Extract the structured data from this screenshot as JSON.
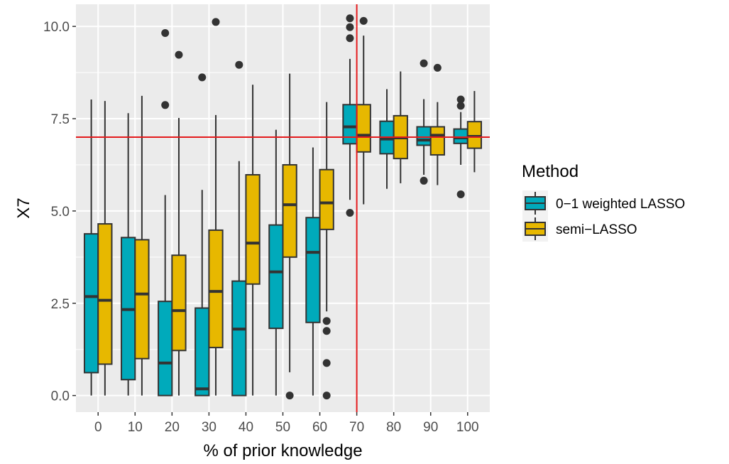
{
  "chart_data": {
    "type": "boxplot",
    "title": "",
    "xlabel": "% of prior knowledge",
    "ylabel": "X7",
    "categories": [
      "0",
      "10",
      "20",
      "30",
      "40",
      "50",
      "60",
      "70",
      "80",
      "90",
      "100"
    ],
    "y_ticks": [
      "0.0",
      "2.5",
      "5.0",
      "7.5",
      "10.0"
    ],
    "ylim": [
      -0.45,
      10.6
    ],
    "grid": true,
    "reference_lines": {
      "horizontal_y": 7.0,
      "vertical_x": "70",
      "color": "#e41a1c"
    },
    "legend": {
      "title": "Method",
      "position": "right",
      "entries": [
        "0−1 weighted LASSO",
        "semi−LASSO"
      ]
    },
    "series": [
      {
        "name": "0−1 weighted LASSO",
        "color": "#00aabb",
        "boxes": [
          {
            "category": "0",
            "lower_whisker": 0.0,
            "q1": 0.62,
            "median": 2.68,
            "q3": 4.38,
            "upper_whisker": 8.02,
            "outliers": []
          },
          {
            "category": "10",
            "lower_whisker": 0.0,
            "q1": 0.43,
            "median": 2.33,
            "q3": 4.28,
            "upper_whisker": 7.65,
            "outliers": []
          },
          {
            "category": "20",
            "lower_whisker": 0.0,
            "q1": 0.0,
            "median": 0.88,
            "q3": 2.55,
            "upper_whisker": 5.43,
            "outliers": [
              7.87,
              9.82
            ]
          },
          {
            "category": "30",
            "lower_whisker": 0.0,
            "q1": 0.0,
            "median": 0.18,
            "q3": 2.37,
            "upper_whisker": 5.57,
            "outliers": [
              8.62
            ]
          },
          {
            "category": "40",
            "lower_whisker": 0.0,
            "q1": 0.0,
            "median": 1.8,
            "q3": 3.1,
            "upper_whisker": 6.35,
            "outliers": [
              8.96
            ]
          },
          {
            "category": "50",
            "lower_whisker": 0.0,
            "q1": 1.82,
            "median": 3.35,
            "q3": 4.62,
            "upper_whisker": 7.2,
            "outliers": []
          },
          {
            "category": "60",
            "lower_whisker": 0.0,
            "q1": 1.98,
            "median": 3.88,
            "q3": 4.82,
            "upper_whisker": 6.72,
            "outliers": []
          },
          {
            "category": "70",
            "lower_whisker": 5.3,
            "q1": 6.82,
            "median": 7.28,
            "q3": 7.88,
            "upper_whisker": 9.12,
            "outliers": [
              4.95,
              9.68,
              9.98,
              10.22
            ]
          },
          {
            "category": "80",
            "lower_whisker": 5.6,
            "q1": 6.55,
            "median": 6.95,
            "q3": 7.43,
            "upper_whisker": 8.3,
            "outliers": []
          },
          {
            "category": "90",
            "lower_whisker": 5.98,
            "q1": 6.78,
            "median": 6.92,
            "q3": 7.28,
            "upper_whisker": 8.03,
            "outliers": [
              5.82,
              9.0
            ]
          },
          {
            "category": "100",
            "lower_whisker": 6.25,
            "q1": 6.83,
            "median": 6.98,
            "q3": 7.22,
            "upper_whisker": 7.68,
            "outliers": [
              5.45,
              7.85,
              8.02
            ]
          }
        ]
      },
      {
        "name": "semi−LASSO",
        "color": "#e7b800",
        "boxes": [
          {
            "category": "0",
            "lower_whisker": 0.0,
            "q1": 0.85,
            "median": 2.58,
            "q3": 4.65,
            "upper_whisker": 7.98,
            "outliers": []
          },
          {
            "category": "10",
            "lower_whisker": 0.0,
            "q1": 1.0,
            "median": 2.75,
            "q3": 4.22,
            "upper_whisker": 8.12,
            "outliers": []
          },
          {
            "category": "20",
            "lower_whisker": 0.0,
            "q1": 1.22,
            "median": 2.3,
            "q3": 3.8,
            "upper_whisker": 7.52,
            "outliers": [
              9.23
            ]
          },
          {
            "category": "30",
            "lower_whisker": 0.0,
            "q1": 1.3,
            "median": 2.82,
            "q3": 4.48,
            "upper_whisker": 7.6,
            "outliers": [
              10.12
            ]
          },
          {
            "category": "40",
            "lower_whisker": 0.0,
            "q1": 3.02,
            "median": 4.13,
            "q3": 5.98,
            "upper_whisker": 8.42,
            "outliers": []
          },
          {
            "category": "50",
            "lower_whisker": 0.63,
            "q1": 3.75,
            "median": 5.17,
            "q3": 6.25,
            "upper_whisker": 8.72,
            "outliers": [
              0.0
            ]
          },
          {
            "category": "60",
            "lower_whisker": 2.28,
            "q1": 4.5,
            "median": 5.22,
            "q3": 6.12,
            "upper_whisker": 7.95,
            "outliers": [
              0.0,
              0.88,
              1.75,
              2.02
            ]
          },
          {
            "category": "70",
            "lower_whisker": 5.18,
            "q1": 6.6,
            "median": 7.05,
            "q3": 7.88,
            "upper_whisker": 9.75,
            "outliers": [
              10.15
            ]
          },
          {
            "category": "80",
            "lower_whisker": 5.75,
            "q1": 6.42,
            "median": 6.98,
            "q3": 7.58,
            "upper_whisker": 8.78,
            "outliers": []
          },
          {
            "category": "90",
            "lower_whisker": 5.7,
            "q1": 6.52,
            "median": 7.05,
            "q3": 7.28,
            "upper_whisker": 7.95,
            "outliers": [
              8.88
            ]
          },
          {
            "category": "100",
            "lower_whisker": 6.05,
            "q1": 6.7,
            "median": 7.02,
            "q3": 7.42,
            "upper_whisker": 8.25,
            "outliers": []
          }
        ]
      }
    ]
  }
}
